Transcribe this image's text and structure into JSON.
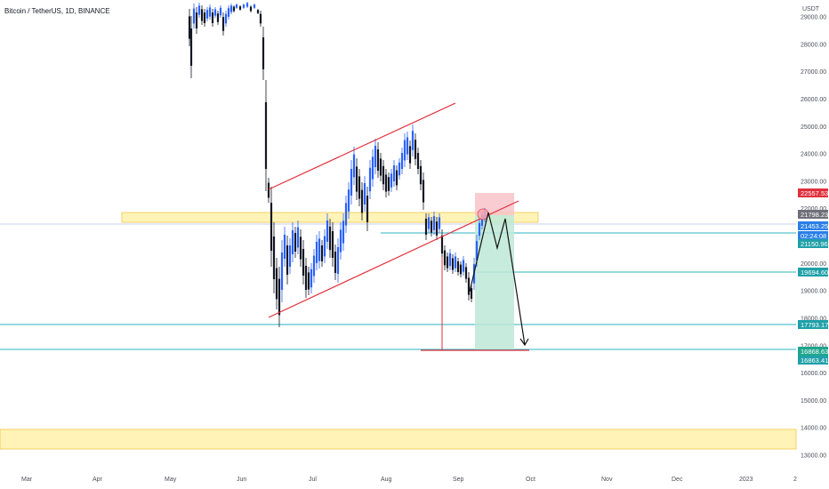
{
  "chart_data": {
    "type": "candlestick",
    "title": "Bitcoin / TetherUS, 1D, BINANCE",
    "currency": "USDT",
    "y_ticks": [
      13000,
      14000,
      15000,
      16000,
      17000,
      18000,
      19000,
      20000,
      21000,
      22000,
      23000,
      24000,
      25000,
      26000,
      27000,
      28000,
      29000
    ],
    "y_tick_labels": [
      "13000.00",
      "14000.00",
      "15000.00",
      "16000.00",
      "17000.00",
      "18000.00",
      "19000.00",
      "20000.00",
      "21000.00",
      "22000.00",
      "23000.00",
      "24000.00",
      "25000.00",
      "26000.00",
      "27000.00",
      "28000.00",
      "29000.00"
    ],
    "x_ticks": [
      "Mar",
      "Apr",
      "May",
      "Jun",
      "Jul",
      "Aug",
      "Sep",
      "Oct",
      "Nov",
      "Dec",
      "2023",
      "2"
    ],
    "price_tags": [
      {
        "label": "22557.53",
        "value": 22557.53,
        "color": "#e0303c"
      },
      {
        "label": "21798.23",
        "value": 21798.23,
        "color": "#6e7079"
      },
      {
        "label": "21453.25",
        "value": 21453.25,
        "color": "#2a7fe8"
      },
      {
        "label": "02:24:08",
        "value": 21255,
        "color": "#2a7fe8"
      },
      {
        "label": "21150.96",
        "value": 21150.96,
        "color": "#20a0a8"
      },
      {
        "label": "19694.60",
        "value": 19694.6,
        "color": "#20a0a8"
      },
      {
        "label": "17793.17",
        "value": 17793.17,
        "color": "#20a0a8"
      },
      {
        "label": "16868.63",
        "value": 16868.63,
        "color": "#1fa58c"
      },
      {
        "label": "16863.41",
        "value": 16863.41,
        "color": "#20a0a8"
      }
    ],
    "horizontal_levels": [
      21150.96,
      19694.6,
      17793.17,
      16863.41
    ],
    "zones": [
      {
        "name": "resistance zone",
        "from": 21800,
        "to": 22100,
        "color": "#ffe066"
      },
      {
        "name": "support zone",
        "from": 13200,
        "to": 13950,
        "color": "#ffe066"
      }
    ],
    "colors": {
      "up": "#2962ff",
      "down": "#131722",
      "channel": "#e0303c",
      "projection": "#111111",
      "target_box": "#b2e3d0",
      "stop_box": "#f5b5bd"
    }
  }
}
